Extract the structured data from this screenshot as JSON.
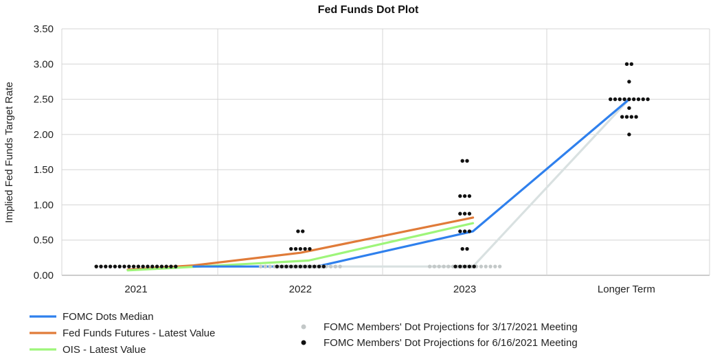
{
  "chart_data": {
    "type": "line",
    "title": "Fed Funds Dot Plot",
    "ylabel": "Implied Fed Funds Target Rate",
    "xlabel": "",
    "categories": [
      "2021",
      "2022",
      "2023",
      "Longer Term"
    ],
    "ylim": [
      0,
      3.5
    ],
    "yticks": [
      "0.00",
      "0.50",
      "1.00",
      "1.50",
      "2.00",
      "2.50",
      "3.00",
      "3.50"
    ],
    "grid": true,
    "lines": [
      {
        "name": "FOMC Dots Median",
        "color": "#2f80ed",
        "points": [
          [
            0.35,
            0.125
          ],
          [
            1.1,
            0.125
          ],
          [
            2.05,
            0.625
          ],
          [
            3.0,
            2.5
          ]
        ]
      },
      {
        "name": "Fed Funds Futures - Latest Value",
        "color": "#e07b39",
        "points": [
          [
            -0.05,
            0.08
          ],
          [
            0.35,
            0.14
          ],
          [
            1.0,
            0.32
          ],
          [
            2.05,
            0.82
          ]
        ]
      },
      {
        "name": "OIS - Latest Value",
        "color": "#9ef57a",
        "points": [
          [
            -0.05,
            0.07
          ],
          [
            0.35,
            0.12
          ],
          [
            1.05,
            0.21
          ],
          [
            2.05,
            0.74
          ]
        ]
      },
      {
        "name": "",
        "color": "#d9e1e1",
        "points": [
          [
            1.05,
            0.125
          ],
          [
            2.05,
            0.125
          ],
          [
            3.0,
            2.5
          ]
        ]
      }
    ],
    "dot_series": [
      {
        "name": "FOMC Members' Dot Projections for 3/17/2021 Meeting",
        "color": "#c3c8c8",
        "groups": [
          {
            "x": 0,
            "rows": [
              {
                "y": 0.125,
                "n": 18
              }
            ]
          },
          {
            "x": 1,
            "rows": [
              {
                "y": 0.125,
                "n": 18
              }
            ]
          },
          {
            "x": 2,
            "rows": [
              {
                "y": 0.125,
                "n": 16
              }
            ]
          },
          {
            "x": 3,
            "rows": [
              {
                "y": 2.5,
                "n": 9
              }
            ]
          }
        ]
      },
      {
        "name": "FOMC Members' Dot Projections for 6/16/2021 Meeting",
        "color": "#111111",
        "groups": [
          {
            "x": 0,
            "rows": [
              {
                "y": 0.125,
                "n": 18
              }
            ]
          },
          {
            "x": 1,
            "rows": [
              {
                "y": 0.125,
                "n": 11
              },
              {
                "y": 0.375,
                "n": 5
              },
              {
                "y": 0.625,
                "n": 2
              }
            ]
          },
          {
            "x": 2,
            "rows": [
              {
                "y": 0.125,
                "n": 5
              },
              {
                "y": 0.375,
                "n": 2
              },
              {
                "y": 0.625,
                "n": 3
              },
              {
                "y": 0.875,
                "n": 3
              },
              {
                "y": 1.125,
                "n": 3
              },
              {
                "y": 1.625,
                "n": 2
              }
            ]
          },
          {
            "x": 3,
            "rows": [
              {
                "y": 2.0,
                "n": 1
              },
              {
                "y": 2.25,
                "n": 4
              },
              {
                "y": 2.375,
                "n": 1
              },
              {
                "y": 2.5,
                "n": 9
              },
              {
                "y": 2.75,
                "n": 1
              },
              {
                "y": 3.0,
                "n": 2
              }
            ]
          }
        ]
      }
    ]
  }
}
